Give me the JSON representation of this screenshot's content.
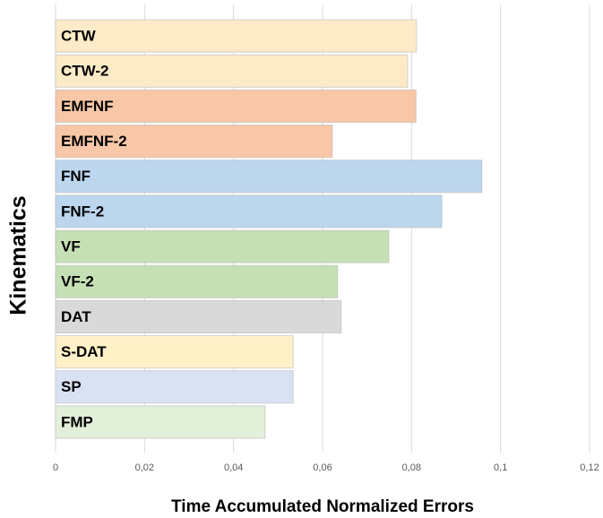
{
  "chart_data": {
    "type": "bar",
    "orientation": "horizontal",
    "xlabel": "Time Accumulated Normalized Errors",
    "ylabel": "Kinematics",
    "categories": [
      "CTW",
      "CTW-2",
      "EMFNF",
      "EMFNF-2",
      "FNF",
      "FNF-2",
      "VF",
      "VF-2",
      "DAT",
      "S-DAT",
      "SP",
      "FMP"
    ],
    "values": [
      0.0811,
      0.0791,
      0.081,
      0.0622,
      0.0958,
      0.0868,
      0.0749,
      0.0634,
      0.0642,
      0.0534,
      0.0534,
      0.0471
    ],
    "colors": [
      "#fdebc7",
      "#fdebc7",
      "#f8c7a7",
      "#f8c7a7",
      "#bcd6ee",
      "#bcd6ee",
      "#c6e0b5",
      "#c6e0b5",
      "#d9d9d9",
      "#fff0c8",
      "#d9e2f3",
      "#e2efd9"
    ],
    "xlim": [
      0,
      0.12
    ],
    "xticks": [
      0,
      {
        "value": 0.02,
        "label": "0,02"
      },
      {
        "value": 0.04,
        "label": "0,04"
      },
      {
        "value": 0.06,
        "label": "0,06"
      },
      {
        "value": 0.08,
        "label": "0,08"
      },
      {
        "value": 0.1,
        "label": "0,1"
      },
      {
        "value": 0.12,
        "label": "0,12"
      }
    ],
    "grid": true
  }
}
